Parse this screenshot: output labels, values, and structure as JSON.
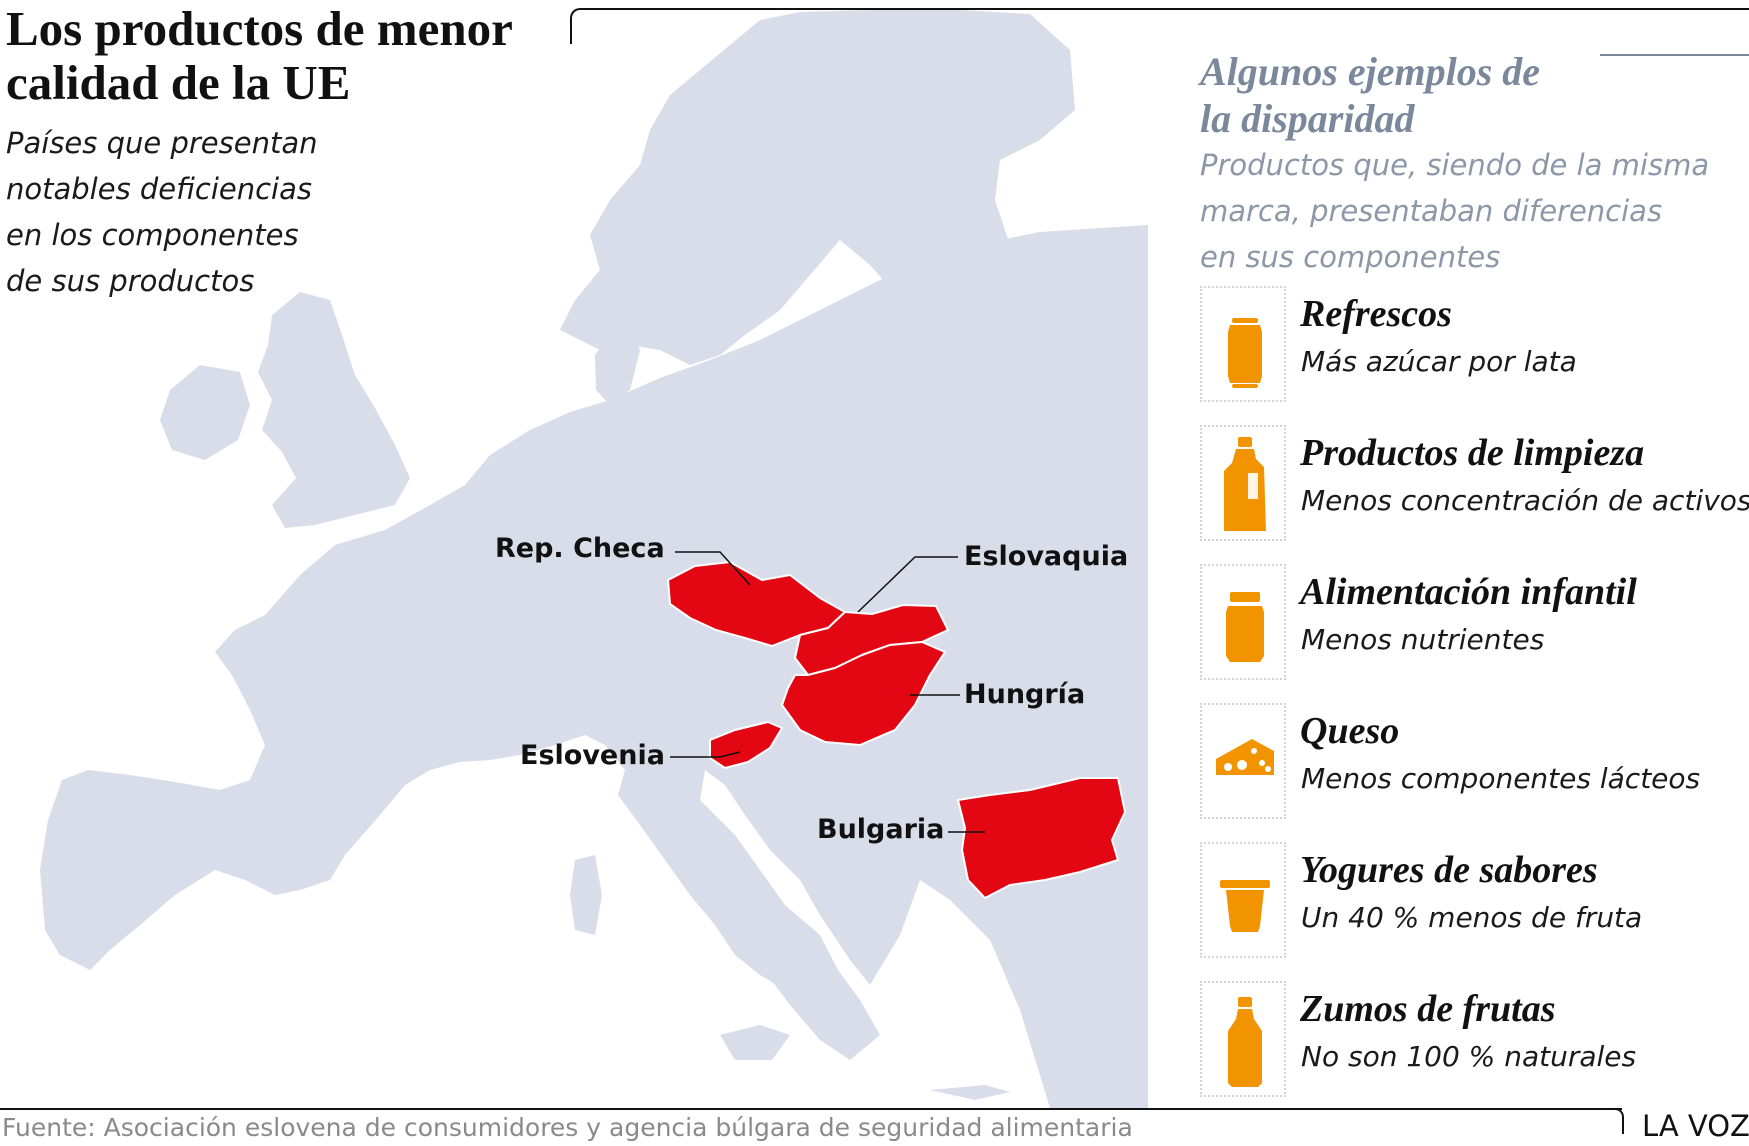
{
  "header": {
    "title_lines": [
      "Los productos de menor",
      "calidad de la UE"
    ],
    "subtitle_lines": [
      "Países que presentan",
      "notables deficiencias",
      "en los componentes",
      "de sus productos"
    ]
  },
  "map": {
    "countries": [
      {
        "key": "czech",
        "label": "Rep. Checa"
      },
      {
        "key": "slovakia",
        "label": "Eslovaquia"
      },
      {
        "key": "hungary",
        "label": "Hungría"
      },
      {
        "key": "slovenia",
        "label": "Eslovenia"
      },
      {
        "key": "bulgaria",
        "label": "Bulgaria"
      }
    ],
    "colors": {
      "land": "#d9dde9",
      "sea": "#ffffff",
      "highlight": "#e30613",
      "border": "#ffffff"
    }
  },
  "panel": {
    "title_lines": [
      "Algunos ejemplos de",
      "la disparidad"
    ],
    "subtitle_lines": [
      "Productos que, siendo de la misma",
      "marca, presentaban diferencias",
      "en sus componentes"
    ],
    "icon_color": "#f29400",
    "products": [
      {
        "name": "Refrescos",
        "description": "Más azúcar por lata",
        "icon": "can-icon"
      },
      {
        "name": "Productos de limpieza",
        "description": "Menos concentración de activos",
        "icon": "detergent-bottle-icon"
      },
      {
        "name": "Alimentación infantil",
        "description": "Menos nutrientes",
        "icon": "baby-food-jar-icon"
      },
      {
        "name": "Queso",
        "description": "Menos componentes lácteos",
        "icon": "cheese-icon"
      },
      {
        "name": "Yogures de sabores",
        "description": "Un 40 % menos de fruta",
        "icon": "yogurt-cup-icon"
      },
      {
        "name": "Zumos de frutas",
        "description": "No son 100 % naturales",
        "icon": "juice-bottle-icon"
      }
    ]
  },
  "footer": {
    "source": "Fuente: Asociación eslovena de consumidores y agencia búlgara de seguridad alimentaria",
    "brand": "LA VOZ"
  }
}
